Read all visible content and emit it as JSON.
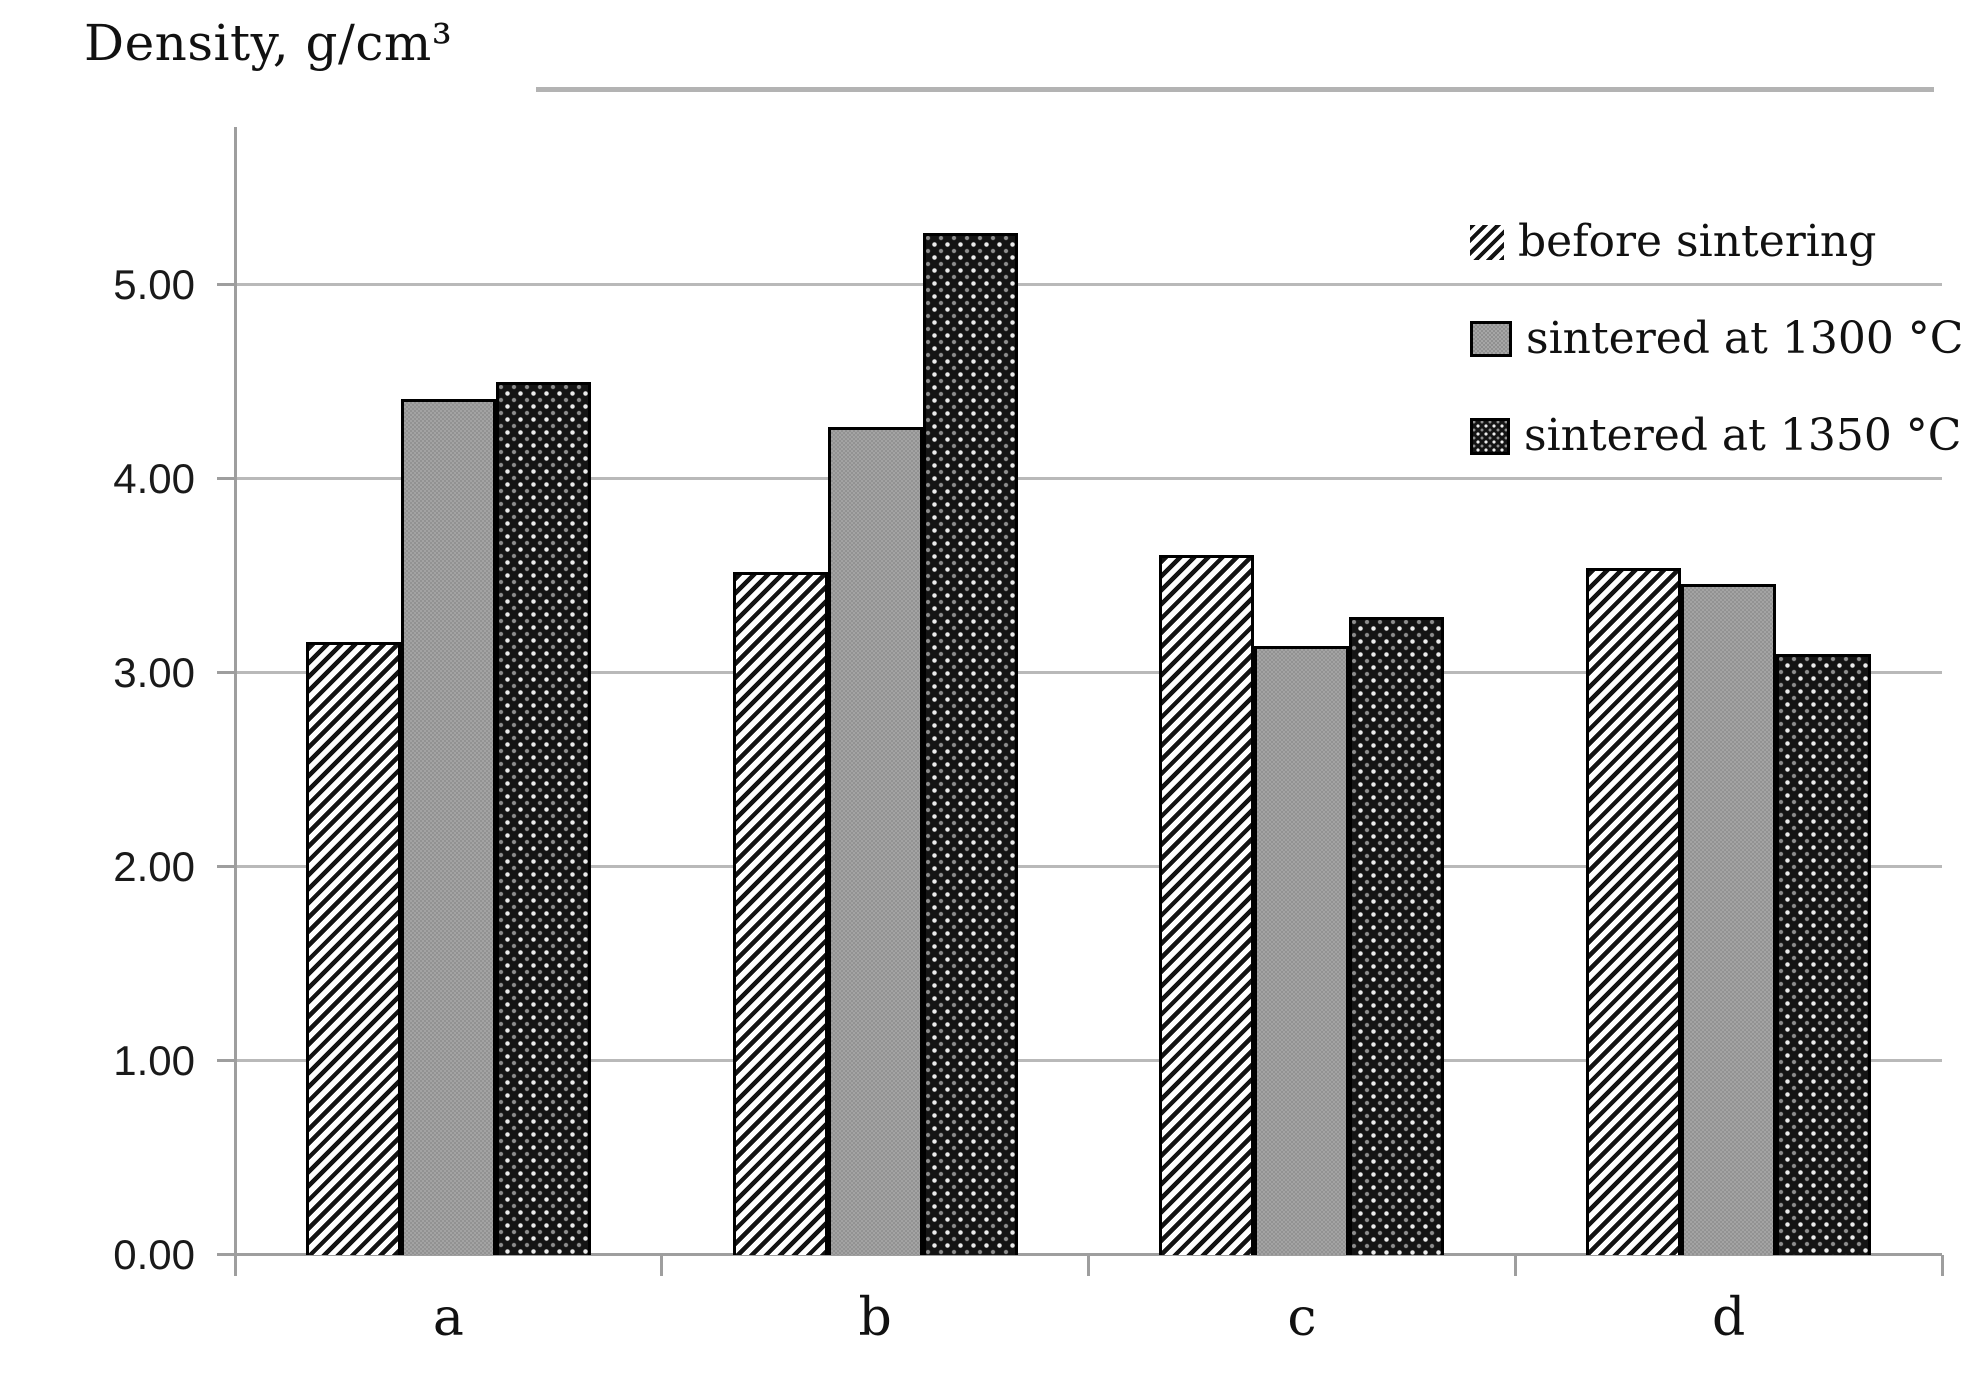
{
  "chart_data": {
    "type": "bar",
    "title": "Density, g/cm³",
    "ylabel": "Density, g/cm³",
    "xlabel": "",
    "categories": [
      "a",
      "b",
      "c",
      "d"
    ],
    "series": [
      {
        "name": "before sintering",
        "pattern": "hatch",
        "values": [
          3.16,
          3.52,
          3.61,
          3.54
        ]
      },
      {
        "name": "sintered at 1300 °C",
        "pattern": "gray",
        "values": [
          4.41,
          4.27,
          3.14,
          3.46
        ]
      },
      {
        "name": "sintered at 1350 °C",
        "pattern": "dots",
        "values": [
          4.5,
          5.27,
          3.29,
          3.1
        ]
      }
    ],
    "yticks": [
      {
        "value": 5,
        "label": "5.00"
      },
      {
        "value": 4,
        "label": "4.00"
      },
      {
        "value": 3,
        "label": "3.00"
      },
      {
        "value": 2,
        "label": "2.00"
      },
      {
        "value": 1,
        "label": "1.00"
      },
      {
        "value": 0,
        "label": "0.00"
      }
    ],
    "ylim": [
      0,
      5.8
    ],
    "grid": true,
    "legend_position": "upper right"
  },
  "colors": {
    "grid": "#b9b9b9",
    "axis": "#9e9e9e",
    "bar_border": "#000000",
    "gray_fill": "#9a9a9a",
    "dark_fill": "#141414",
    "hatch_stripe": "#131313",
    "text": "#111111",
    "top_rule": "#b3b3b3"
  }
}
